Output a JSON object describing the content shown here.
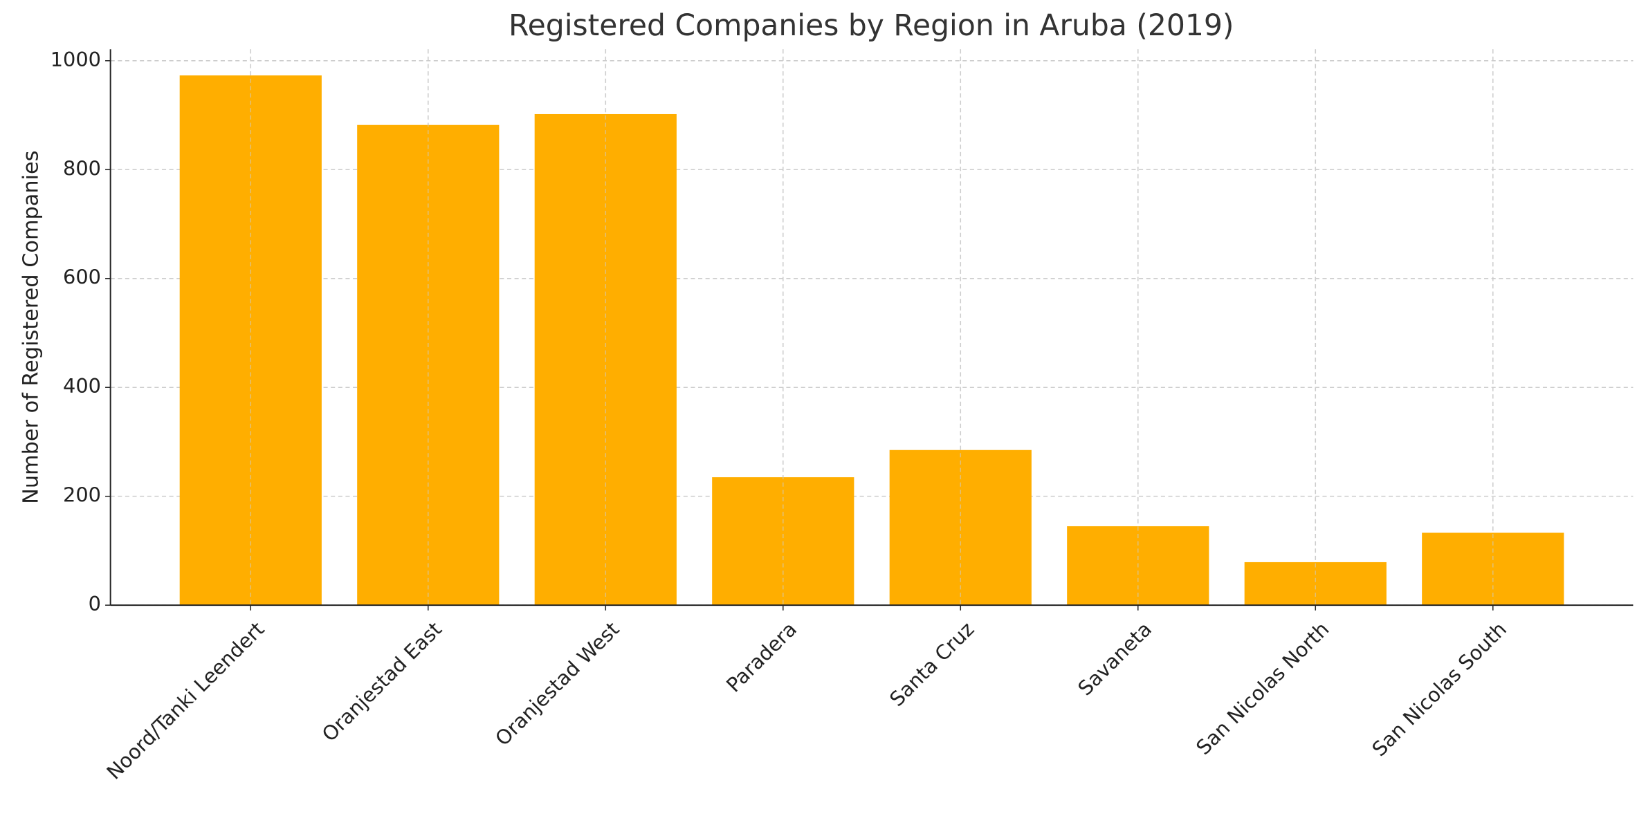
{
  "chart_data": {
    "type": "bar",
    "title": "Registered Companies by Region in Aruba (2019)",
    "y_label": "Number of Registered Companies",
    "categories": [
      "Noord/Tanki Leendert",
      "Oranjestad East",
      "Oranjestad West",
      "Paradera",
      "Santa Cruz",
      "Savaneta",
      "San Nicolas North",
      "San Nicolas South"
    ],
    "values": [
      973,
      882,
      902,
      235,
      285,
      145,
      79,
      133
    ],
    "color": "#ffae00",
    "ylim": [
      0,
      1021
    ],
    "yticks": [
      0,
      200,
      400,
      600,
      800,
      1000
    ],
    "grid": true
  }
}
